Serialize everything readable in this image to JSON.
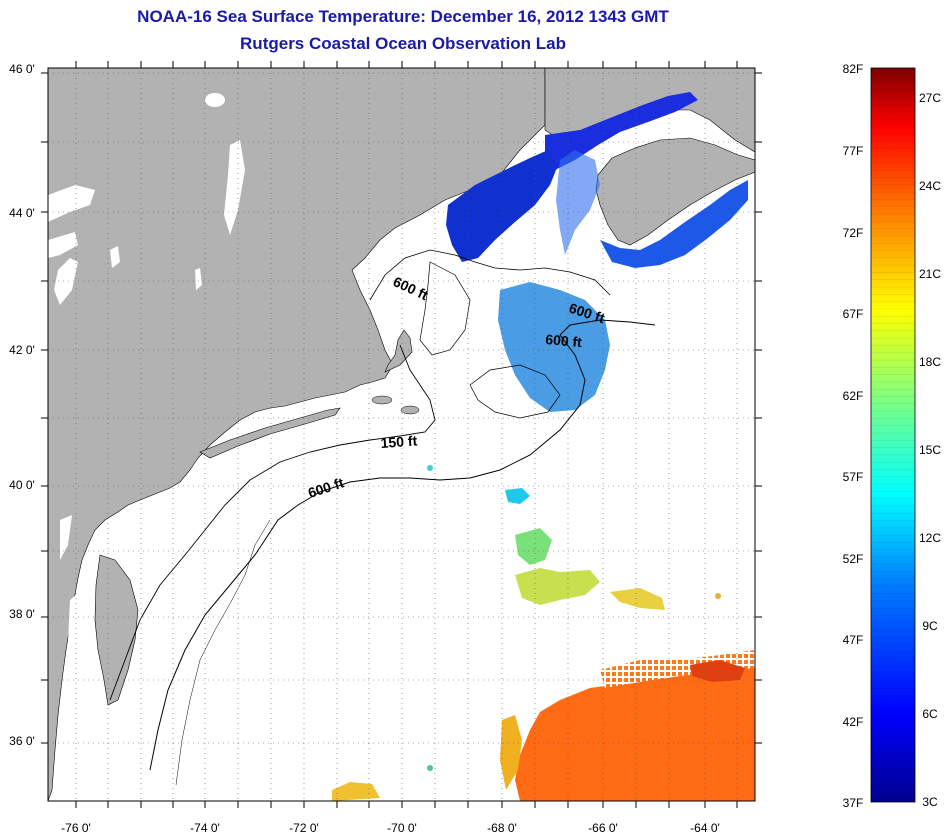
{
  "title": {
    "line1": "NOAA-16 Sea Surface Temperature:  December 16, 2012 1343 GMT",
    "line2": "Rutgers Coastal Ocean Observation Lab"
  },
  "map": {
    "lat_labels": [
      "46 0'",
      "44 0'",
      "42 0'",
      "40 0'",
      "38 0'",
      "36 0'"
    ],
    "lon_labels": [
      "-76 0'",
      "-74 0'",
      "-72 0'",
      "-70 0'",
      "-68 0'",
      "-66 0'",
      "-64 0'"
    ],
    "contour_labels": [
      "600 ft",
      "600 ft",
      "600 ft",
      "150 ft",
      "600 ft"
    ],
    "land_color": "#b2b2b2",
    "ocean_color": "#ffffff"
  },
  "colorbar": {
    "fahrenheit_labels": [
      "82F",
      "77F",
      "72F",
      "67F",
      "62F",
      "57F",
      "52F",
      "47F",
      "42F",
      "37F"
    ],
    "celsius_labels": [
      "27C",
      "24C",
      "21C",
      "18C",
      "15C",
      "12C",
      "9C",
      "6C",
      "3C"
    ],
    "colors": [
      "#00008f",
      "#0000ff",
      "#0080ff",
      "#00ffff",
      "#80ff80",
      "#ffff00",
      "#ff8000",
      "#ff0000",
      "#800000"
    ]
  }
}
